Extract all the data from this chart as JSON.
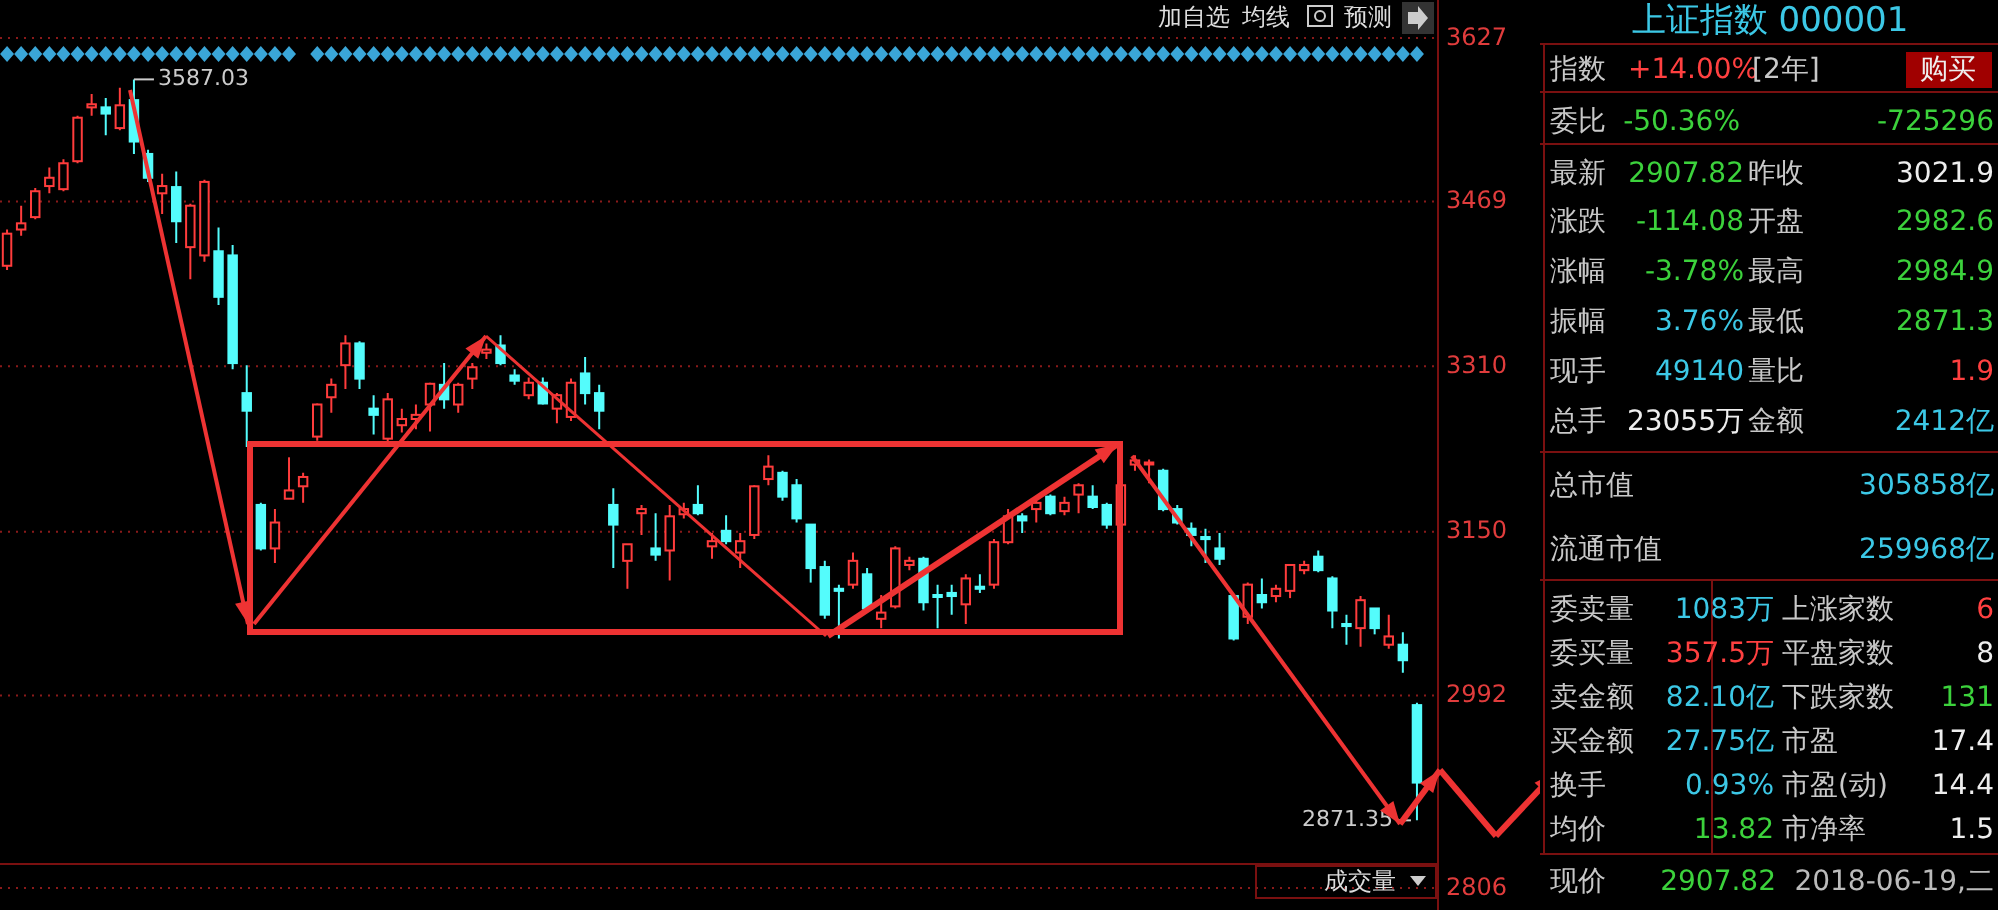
{
  "chart_data": [
    {
      "type": "candlestick",
      "categories": [
        null,
        null,
        null,
        null,
        null,
        null,
        null,
        null,
        null,
        null,
        null,
        null,
        null,
        null,
        null,
        null,
        null,
        null,
        null,
        null,
        null,
        null,
        null,
        null,
        null,
        null,
        null,
        null,
        null,
        null,
        null,
        null,
        null,
        null,
        null,
        null,
        null,
        null,
        null,
        null,
        null,
        null,
        null,
        null,
        null,
        null,
        null,
        null,
        null,
        null,
        null,
        null,
        null,
        null,
        null,
        null,
        null,
        null,
        null,
        null,
        null,
        null,
        null,
        null,
        null,
        null,
        null,
        null,
        null,
        null,
        null,
        null,
        null,
        null,
        null,
        null,
        null,
        null,
        null,
        null,
        null,
        null,
        null,
        null,
        null,
        null,
        null,
        null,
        null,
        null,
        null,
        null,
        null,
        null,
        null,
        null,
        null,
        null,
        null,
        null,
        null
      ],
      "ohlc": [
        [
          3407,
          3442,
          3403,
          3438
        ],
        [
          3442,
          3465,
          3436,
          3448
        ],
        [
          3454,
          3482,
          3452,
          3479
        ],
        [
          3484,
          3502,
          3477,
          3492
        ],
        [
          3481,
          3510,
          3479,
          3506
        ],
        [
          3508,
          3552,
          3506,
          3550
        ],
        [
          3560,
          3573,
          3552,
          3563
        ],
        [
          3560,
          3569,
          3533,
          3554
        ],
        [
          3540,
          3579,
          3538,
          3562
        ],
        [
          3567,
          3587.03,
          3515,
          3527
        ],
        [
          3515,
          3519,
          3488,
          3492
        ],
        [
          3477,
          3496,
          3457,
          3484
        ],
        [
          3483,
          3498,
          3429,
          3450
        ],
        [
          3425,
          3467,
          3394,
          3465
        ],
        [
          3417,
          3490,
          3411,
          3488
        ],
        [
          3421,
          3444,
          3369,
          3377
        ],
        [
          3417,
          3427,
          3307,
          3313
        ],
        [
          3284,
          3311,
          3232,
          3267
        ],
        [
          3176,
          3178,
          3132,
          3134
        ],
        [
          3134,
          3172,
          3120,
          3159
        ],
        [
          3182,
          3222,
          3182,
          3190
        ],
        [
          3194,
          3207,
          3178,
          3203
        ],
        [
          3242,
          3274,
          3238,
          3273
        ],
        [
          3280,
          3298,
          3265,
          3292
        ],
        [
          3311,
          3340,
          3288,
          3332
        ],
        [
          3332,
          3334,
          3288,
          3298
        ],
        [
          3269,
          3282,
          3244,
          3263
        ],
        [
          3240,
          3284,
          3236,
          3278
        ],
        [
          3253,
          3269,
          3246,
          3259
        ],
        [
          3259,
          3273,
          3249,
          3263
        ],
        [
          3273,
          3294,
          3247,
          3293
        ],
        [
          3292,
          3313,
          3269,
          3278
        ],
        [
          3273,
          3294,
          3265,
          3292
        ],
        [
          3298,
          3313,
          3288,
          3309
        ],
        [
          3323,
          3332,
          3317,
          3326
        ],
        [
          3330,
          3340,
          3311,
          3313
        ],
        [
          3301,
          3307,
          3292,
          3296
        ],
        [
          3282,
          3299,
          3278,
          3294
        ],
        [
          3294,
          3299,
          3273,
          3274
        ],
        [
          3269,
          3284,
          3255,
          3282
        ],
        [
          3261,
          3298,
          3257,
          3294
        ],
        [
          3303,
          3319,
          3273,
          3284
        ],
        [
          3284,
          3292,
          3249,
          3267
        ],
        [
          3176,
          3192,
          3115,
          3157
        ],
        [
          3122,
          3138,
          3095,
          3138
        ],
        [
          3168,
          3176,
          3147,
          3172
        ],
        [
          3134,
          3168,
          3122,
          3128
        ],
        [
          3132,
          3176,
          3103,
          3165
        ],
        [
          3167,
          3178,
          3163,
          3172
        ],
        [
          3176,
          3195,
          3166,
          3168
        ],
        [
          3136,
          3149,
          3124,
          3141
        ],
        [
          3151,
          3166,
          3138,
          3141
        ],
        [
          3130,
          3149,
          3115,
          3141
        ],
        [
          3147,
          3195,
          3143,
          3194
        ],
        [
          3201,
          3224,
          3195,
          3213
        ],
        [
          3207,
          3209,
          3180,
          3184
        ],
        [
          3195,
          3201,
          3159,
          3163
        ],
        [
          3157,
          3157,
          3101,
          3115
        ],
        [
          3116,
          3122,
          3066,
          3070
        ],
        [
          3095,
          3099,
          3047,
          3093
        ],
        [
          3099,
          3130,
          3095,
          3122
        ],
        [
          3109,
          3115,
          3072,
          3076
        ],
        [
          3066,
          3089,
          3057,
          3072
        ],
        [
          3078,
          3136,
          3076,
          3134
        ],
        [
          3118,
          3126,
          3113,
          3122
        ],
        [
          3124,
          3126,
          3074,
          3082
        ],
        [
          3089,
          3099,
          3057,
          3088
        ],
        [
          3091,
          3099,
          3070,
          3088
        ],
        [
          3080,
          3109,
          3061,
          3105
        ],
        [
          3097,
          3109,
          3091,
          3095
        ],
        [
          3099,
          3143,
          3095,
          3140
        ],
        [
          3140,
          3172,
          3138,
          3165
        ],
        [
          3165,
          3168,
          3149,
          3161
        ],
        [
          3172,
          3180,
          3159,
          3178
        ],
        [
          3184,
          3186,
          3166,
          3168
        ],
        [
          3170,
          3184,
          3166,
          3178
        ],
        [
          3186,
          3197,
          3168,
          3195
        ],
        [
          3184,
          3195,
          3172,
          3174
        ],
        [
          3176,
          3178,
          3153,
          3157
        ],
        [
          3157,
          3197,
          3151,
          3195
        ],
        [
          3215,
          3224,
          3209,
          3219
        ],
        [
          3216,
          3220,
          3197,
          3217
        ],
        [
          3209,
          3211,
          3170,
          3172
        ],
        [
          3172,
          3176,
          3157,
          3159
        ],
        [
          3153,
          3159,
          3136,
          3147
        ],
        [
          3145,
          3153,
          3120,
          3143
        ],
        [
          3134,
          3149,
          3118,
          3124
        ],
        [
          3088,
          3089,
          3045,
          3047
        ],
        [
          3068,
          3101,
          3061,
          3099
        ],
        [
          3089,
          3105,
          3076,
          3082
        ],
        [
          3088,
          3099,
          3082,
          3095
        ],
        [
          3093,
          3118,
          3086,
          3118
        ],
        [
          3113,
          3122,
          3109,
          3118
        ],
        [
          3126,
          3132,
          3111,
          3113
        ],
        [
          3105,
          3107,
          3057,
          3074
        ],
        [
          3061,
          3070,
          3041,
          3059
        ],
        [
          3057,
          3088,
          3039,
          3084
        ],
        [
          3076,
          3076,
          3051,
          3057
        ],
        [
          3041,
          3070,
          3037,
          3049
        ],
        [
          3041,
          3053,
          3014,
          3026
        ],
        [
          2982.65,
          2984.97,
          2871.35,
          2907.82
        ]
      ],
      "ylim": [
        2806,
        3627
      ],
      "yticks": [
        3627,
        3469,
        3310,
        3150,
        2992,
        2806
      ],
      "grid": "y",
      "tick_labels": "y",
      "annotations": [
        "3587.03",
        "2871.35",
        "加自选",
        "均线",
        "预测",
        "成交量"
      ]
    },
    {
      "type": "other",
      "title": "上证指数 000001",
      "annotations": [
        "指数",
        "+14.00%",
        "[2年]",
        "购买",
        "委比",
        "-50.36%",
        "-725296",
        "最新",
        "2907.82",
        "昨收",
        "3021.9",
        "涨跌",
        "-114.08",
        "开盘",
        "2982.6",
        "涨幅",
        "-3.78%",
        "最高",
        "2984.9",
        "振幅",
        "3.76%",
        "最低",
        "2871.3",
        "现手",
        "49140",
        "量比",
        "1.9",
        "总手",
        "23055万",
        "金额",
        "2412亿",
        "总市值",
        "305858亿",
        "流通市值",
        "259968亿",
        "委卖量",
        "1083万",
        "上涨家数",
        "6",
        "委买量",
        "357.5万",
        "平盘家数",
        "8",
        "卖金额",
        "82.10亿",
        "下跌家数",
        "131",
        "买金额",
        "27.75亿",
        "市盈",
        "17.4",
        "换手",
        "0.93%",
        "市盈(动)",
        "14.4",
        "均价",
        "13.82",
        "市净率",
        "1.5",
        "现价",
        "2907.82",
        "2018-06-19,二"
      ]
    }
  ]
}
